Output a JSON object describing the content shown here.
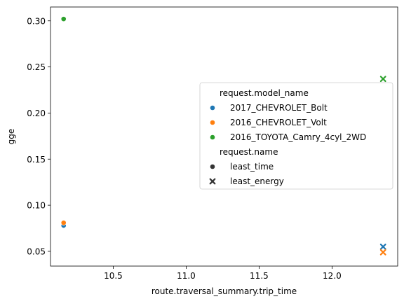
{
  "chart_data": {
    "type": "scatter",
    "title": "",
    "xlabel": "route.traversal_summary.trip_time",
    "ylabel": "gge",
    "xlim": [
      10.07,
      12.45
    ],
    "ylim": [
      0.034,
      0.315
    ],
    "x_ticks": [
      10.5,
      11.0,
      11.5,
      12.0
    ],
    "x_tick_labels": [
      "10.5",
      "11.0",
      "11.5",
      "12.0"
    ],
    "y_ticks": [
      0.05,
      0.1,
      0.15,
      0.2,
      0.25,
      0.3
    ],
    "y_tick_labels": [
      "0.05",
      "0.10",
      "0.15",
      "0.20",
      "0.25",
      "0.30"
    ],
    "grid": false,
    "legend_position": "center-right",
    "hue_title": "request.model_name",
    "style_title": "request.name",
    "series": [
      {
        "name": "2017_CHEVROLET_Bolt",
        "color": "#1f77b4",
        "points": [
          {
            "x": 10.16,
            "y": 0.078,
            "style": "least_time"
          },
          {
            "x": 12.35,
            "y": 0.055,
            "style": "least_energy"
          }
        ]
      },
      {
        "name": "2016_CHEVROLET_Volt",
        "color": "#ff7f0e",
        "points": [
          {
            "x": 10.16,
            "y": 0.081,
            "style": "least_time"
          },
          {
            "x": 12.35,
            "y": 0.049,
            "style": "least_energy"
          }
        ]
      },
      {
        "name": "2016_TOYOTA_Camry_4cyl_2WD",
        "color": "#2ca02c",
        "points": [
          {
            "x": 10.16,
            "y": 0.302,
            "style": "least_time"
          },
          {
            "x": 12.35,
            "y": 0.237,
            "style": "least_energy"
          }
        ]
      }
    ],
    "styles": [
      {
        "name": "least_time",
        "marker": "circle"
      },
      {
        "name": "least_energy",
        "marker": "x"
      }
    ]
  }
}
